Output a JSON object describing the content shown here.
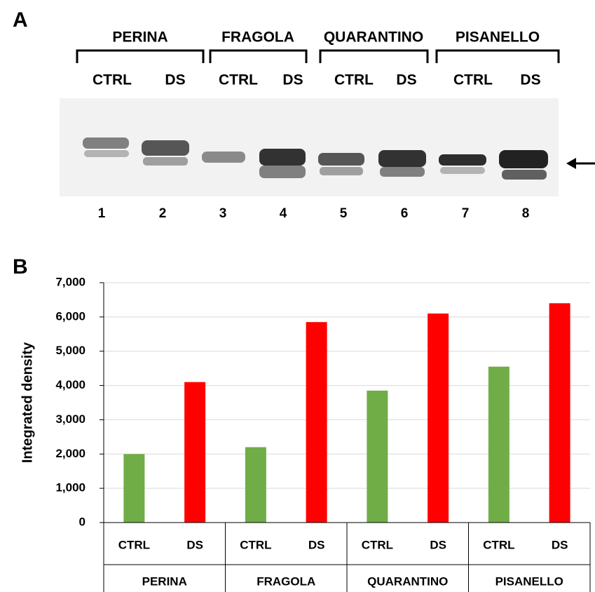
{
  "panel_a": {
    "label": "A",
    "groups": [
      "PERINA",
      "FRAGOLA",
      "QUARANTINO",
      "PISANELLO"
    ],
    "conditions": [
      "CTRL",
      "DS",
      "CTRL",
      "DS",
      "CTRL",
      "DS",
      "CTRL",
      "DS"
    ],
    "lanes": [
      1,
      2,
      3,
      4,
      5,
      6,
      7,
      8
    ]
  },
  "chart_data": {
    "type": "bar",
    "panel_label": "B",
    "y_label": "Integrated density",
    "categories": [
      "CTRL",
      "DS",
      "CTRL",
      "DS",
      "CTRL",
      "DS",
      "CTRL",
      "DS"
    ],
    "groups": [
      "PERINA",
      "FRAGOLA",
      "QUARANTINO",
      "PISANELLO"
    ],
    "values": [
      2000,
      4100,
      2200,
      5850,
      3850,
      6100,
      4550,
      6400
    ],
    "colors": [
      "#70ad47",
      "#ff0000",
      "#70ad47",
      "#ff0000",
      "#70ad47",
      "#ff0000",
      "#70ad47",
      "#ff0000"
    ],
    "ylim": [
      0,
      7000
    ],
    "yticks": [
      0,
      {
        "value": 1000,
        "label": "1,000"
      },
      {
        "value": 2000,
        "label": "2,000"
      },
      {
        "value": 3000,
        "label": "3,000"
      },
      {
        "value": 4000,
        "label": "4,000"
      },
      {
        "value": 5000,
        "label": "5,000"
      },
      {
        "value": 6000,
        "label": "6,000"
      },
      {
        "value": 7000,
        "label": "7,000"
      }
    ],
    "grid": true
  }
}
